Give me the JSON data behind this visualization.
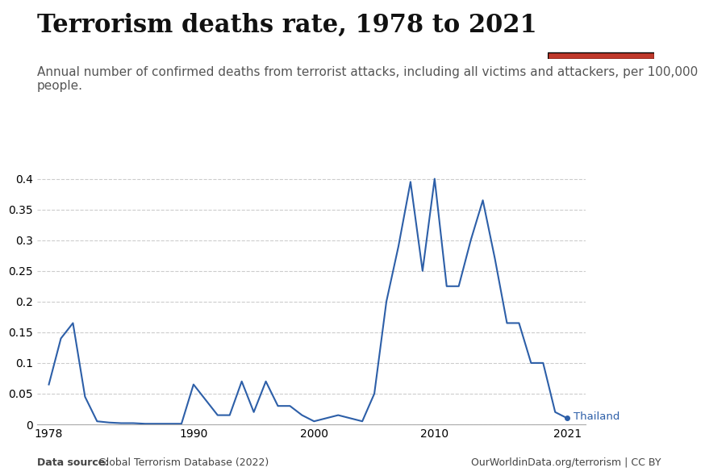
{
  "title": "Terrorism deaths rate, 1978 to 2021",
  "subtitle": "Annual number of confirmed deaths from terrorist attacks, including all victims and attackers, per 100,000\npeople.",
  "datasource_bold": "Data source:",
  "datasource_rest": " Global Terrorism Database (2022)",
  "credit": "OurWorldinData.org/terrorism | CC BY",
  "line_color": "#2d5fa8",
  "line_label": "Thailand",
  "background_color": "#ffffff",
  "title_fontsize": 22,
  "subtitle_fontsize": 11,
  "years": [
    1978,
    1979,
    1980,
    1981,
    1982,
    1983,
    1984,
    1985,
    1986,
    1987,
    1988,
    1989,
    1990,
    1991,
    1992,
    1993,
    1994,
    1995,
    1996,
    1997,
    1998,
    1999,
    2000,
    2001,
    2002,
    2003,
    2004,
    2005,
    2006,
    2007,
    2008,
    2009,
    2010,
    2011,
    2012,
    2013,
    2014,
    2015,
    2016,
    2017,
    2018,
    2019,
    2020,
    2021
  ],
  "values": [
    0.065,
    0.14,
    0.165,
    0.045,
    0.005,
    0.003,
    0.002,
    0.002,
    0.001,
    0.001,
    0.001,
    0.001,
    0.065,
    0.04,
    0.015,
    0.015,
    0.07,
    0.02,
    0.07,
    0.03,
    0.03,
    0.015,
    0.005,
    0.01,
    0.015,
    0.01,
    0.005,
    0.05,
    0.2,
    0.29,
    0.395,
    0.25,
    0.4,
    0.225,
    0.225,
    0.3,
    0.365,
    0.27,
    0.165,
    0.165,
    0.1,
    0.1,
    0.02,
    0.01
  ],
  "ylim": [
    0,
    0.41
  ],
  "yticks": [
    0,
    0.05,
    0.1,
    0.15,
    0.2,
    0.25,
    0.3,
    0.35,
    0.4
  ],
  "xlim": [
    1977,
    2022.5
  ],
  "xticks": [
    1978,
    1990,
    2000,
    2010,
    2021
  ],
  "logo_bg": "#1a3a5c",
  "logo_red": "#c0392b"
}
